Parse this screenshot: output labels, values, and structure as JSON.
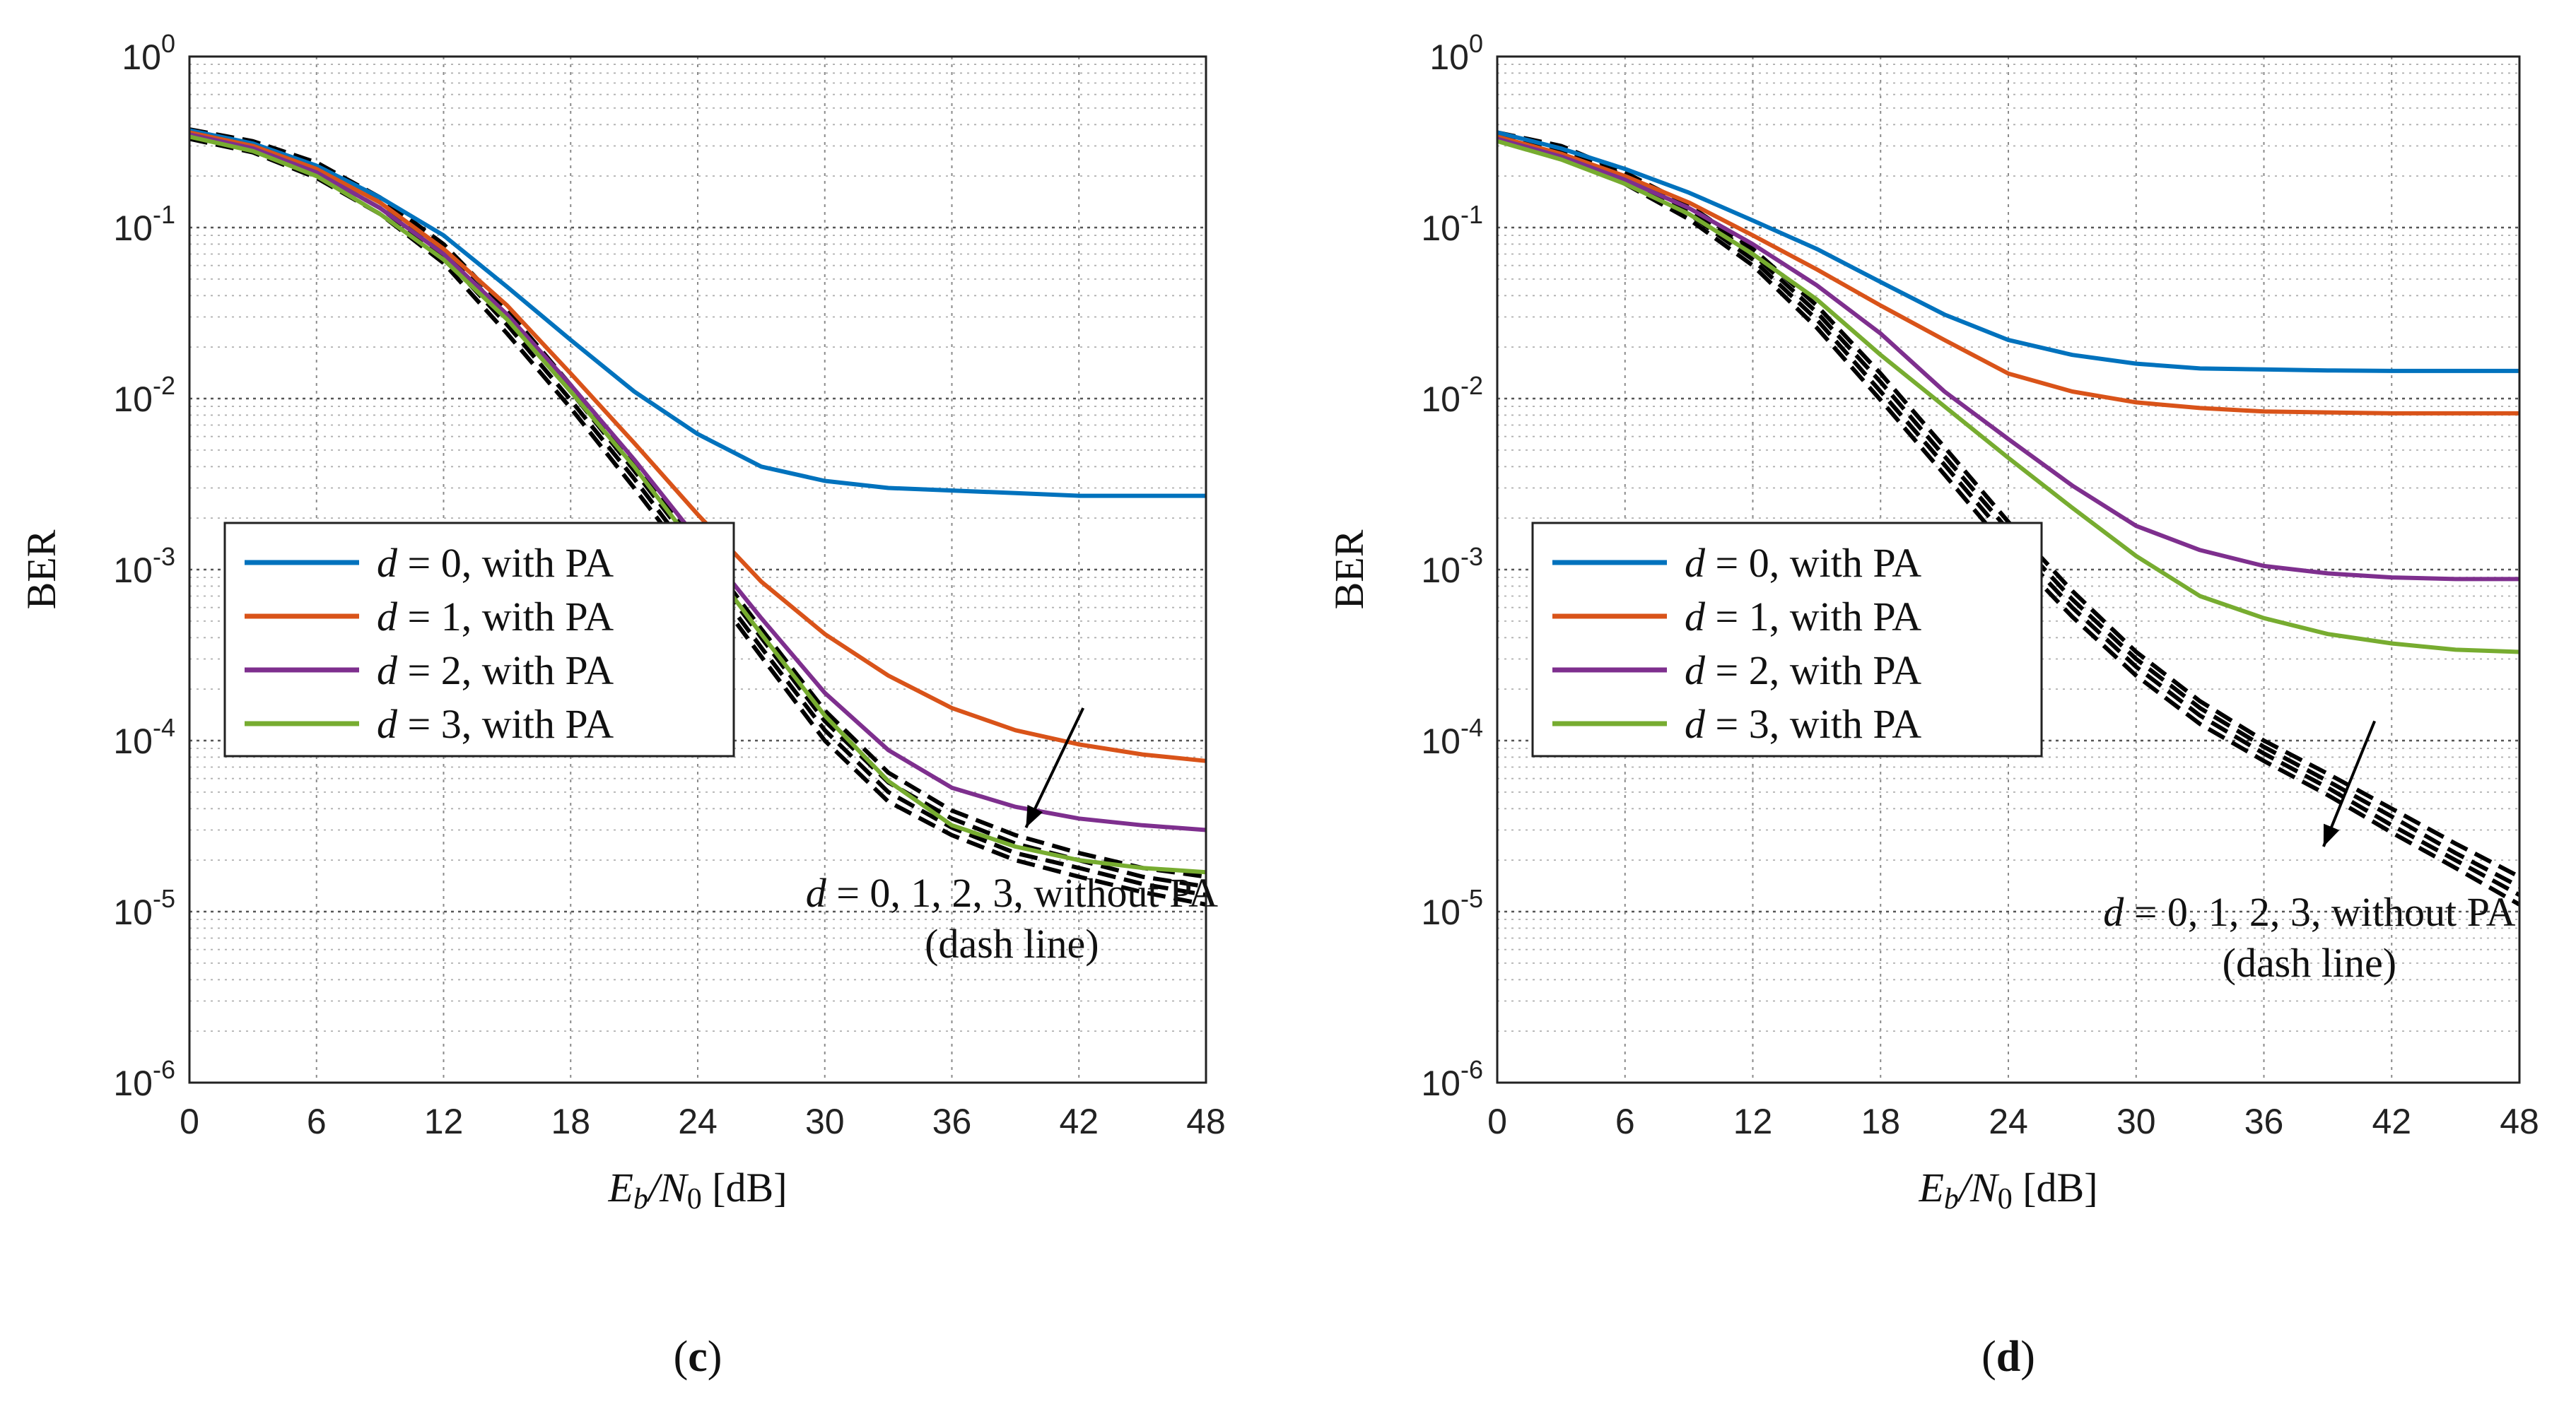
{
  "colors": {
    "d0": "#0072BD",
    "d1": "#D95319",
    "d2": "#7E2F8E",
    "d3": "#77AC30",
    "dash": "#000000",
    "grid": "#8a8a8a"
  },
  "chart_data": [
    {
      "type": "line",
      "panel": "c",
      "caption_open": "(",
      "caption_letter": "c",
      "caption_close": ")",
      "xlabel_main": "E",
      "xlabel_sub1": "b",
      "xlabel_mid": "/N",
      "xlabel_sub2": "0",
      "xlabel_unit": " [dB]",
      "ylabel": "BER",
      "x_scale": "linear",
      "y_scale": "log",
      "xlim": [
        0,
        48
      ],
      "ylim": [
        1e-06,
        1
      ],
      "x_ticks": [
        "0",
        "6",
        "12",
        "18",
        "24",
        "30",
        "36",
        "42",
        "48"
      ],
      "y_ticks_exp": [
        "0",
        "-1",
        "-2",
        "-3",
        "-4",
        "-5",
        "-6"
      ],
      "y_tick_base": "10",
      "grid": true,
      "legend_position": "center-left",
      "x": [
        0,
        3,
        6,
        9,
        12,
        15,
        18,
        21,
        24,
        27,
        30,
        33,
        36,
        39,
        42,
        45,
        48
      ],
      "series": [
        {
          "name": "d=0, with PA",
          "legend_var": "d",
          "legend_eq": " = 0",
          "legend_rest": ", with PA",
          "color_key": "d0",
          "style": "solid",
          "values": [
            0.37,
            0.31,
            0.23,
            0.15,
            0.09,
            0.045,
            0.022,
            0.011,
            0.0062,
            0.004,
            0.0033,
            0.003,
            0.0029,
            0.0028,
            0.0027,
            0.0027,
            0.0027
          ]
        },
        {
          "name": "d=1, with PA",
          "legend_var": "d",
          "legend_eq": " = 1",
          "legend_rest": ", with PA",
          "color_key": "d1",
          "style": "solid",
          "values": [
            0.36,
            0.3,
            0.22,
            0.14,
            0.075,
            0.035,
            0.014,
            0.0055,
            0.0021,
            0.00085,
            0.00042,
            0.00024,
            0.000155,
            0.000115,
            9.5e-05,
            8.3e-05,
            7.6e-05
          ]
        },
        {
          "name": "d=2, with PA",
          "legend_var": "d",
          "legend_eq": " = 2",
          "legend_rest": ", with PA",
          "color_key": "d2",
          "style": "solid",
          "values": [
            0.35,
            0.29,
            0.21,
            0.13,
            0.07,
            0.031,
            0.012,
            0.0044,
            0.0015,
            0.00052,
            0.00019,
            8.8e-05,
            5.3e-05,
            4.1e-05,
            3.5e-05,
            3.2e-05,
            3e-05
          ]
        },
        {
          "name": "d=3, with PA",
          "legend_var": "d",
          "legend_eq": " = 3",
          "legend_rest": ", with PA",
          "color_key": "d3",
          "style": "solid",
          "values": [
            0.34,
            0.28,
            0.2,
            0.12,
            0.065,
            0.029,
            0.011,
            0.004,
            0.0013,
            0.00042,
            0.00014,
            5.8e-05,
            3.2e-05,
            2.4e-05,
            2e-05,
            1.8e-05,
            1.7e-05
          ]
        }
      ],
      "dashed_series": [
        {
          "color_key": "dash",
          "values": [
            0.375,
            0.32,
            0.24,
            0.15,
            0.08,
            0.033,
            0.012,
            0.0042,
            0.0014,
            0.00045,
            0.00015,
            6.5e-05,
            3.9e-05,
            2.8e-05,
            2.2e-05,
            1.8e-05,
            1.6e-05
          ]
        },
        {
          "color_key": "dash",
          "values": [
            0.36,
            0.305,
            0.225,
            0.14,
            0.074,
            0.03,
            0.011,
            0.0038,
            0.00125,
            0.0004,
            0.00013,
            5.7e-05,
            3.5e-05,
            2.5e-05,
            2e-05,
            1.6e-05,
            1.4e-05
          ]
        },
        {
          "color_key": "dash",
          "values": [
            0.345,
            0.29,
            0.21,
            0.13,
            0.068,
            0.027,
            0.0098,
            0.0034,
            0.0011,
            0.00035,
            0.000115,
            5e-05,
            3.1e-05,
            2.2e-05,
            1.8e-05,
            1.45e-05,
            1.25e-05
          ]
        },
        {
          "color_key": "dash",
          "values": [
            0.33,
            0.275,
            0.195,
            0.12,
            0.062,
            0.024,
            0.0088,
            0.003,
            0.00098,
            0.00031,
            0.0001,
            4.4e-05,
            2.8e-05,
            2e-05,
            1.6e-05,
            1.3e-05,
            1.1e-05
          ]
        }
      ],
      "annotation": {
        "var": "d",
        "rest": " = 0, 1, 2, 3, without PA",
        "note": "(dash line)",
        "arrow_from": {
          "x": 42.2,
          "y": 0.000155
        },
        "arrow_to": {
          "x": 39.5,
          "y": 3.1e-05
        }
      }
    },
    {
      "type": "line",
      "panel": "d",
      "caption_open": "(",
      "caption_letter": "d",
      "caption_close": ")",
      "xlabel_main": "E",
      "xlabel_sub1": "b",
      "xlabel_mid": "/N",
      "xlabel_sub2": "0",
      "xlabel_unit": " [dB]",
      "ylabel": "BER",
      "x_scale": "linear",
      "y_scale": "log",
      "xlim": [
        0,
        48
      ],
      "ylim": [
        1e-06,
        1
      ],
      "x_ticks": [
        "0",
        "6",
        "12",
        "18",
        "24",
        "30",
        "36",
        "42",
        "48"
      ],
      "y_ticks_exp": [
        "0",
        "-1",
        "-2",
        "-3",
        "-4",
        "-5",
        "-6"
      ],
      "y_tick_base": "10",
      "grid": true,
      "legend_position": "center-left",
      "x": [
        0,
        3,
        6,
        9,
        12,
        15,
        18,
        21,
        24,
        27,
        30,
        33,
        36,
        39,
        42,
        45,
        48
      ],
      "series": [
        {
          "name": "d=0, with PA",
          "legend_var": "d",
          "legend_eq": " = 0",
          "legend_rest": ", with PA",
          "color_key": "d0",
          "style": "solid",
          "values": [
            0.36,
            0.29,
            0.22,
            0.16,
            0.11,
            0.075,
            0.048,
            0.031,
            0.022,
            0.018,
            0.016,
            0.015,
            0.0148,
            0.0146,
            0.0145,
            0.0145,
            0.0145
          ]
        },
        {
          "name": "d=1, with PA",
          "legend_var": "d",
          "legend_eq": " = 1",
          "legend_rest": ", with PA",
          "color_key": "d1",
          "style": "solid",
          "values": [
            0.34,
            0.27,
            0.2,
            0.14,
            0.09,
            0.057,
            0.035,
            0.022,
            0.014,
            0.011,
            0.0095,
            0.0088,
            0.0084,
            0.0083,
            0.0082,
            0.0082,
            0.0082
          ]
        },
        {
          "name": "d=2, with PA",
          "legend_var": "d",
          "legend_eq": " = 2",
          "legend_rest": ", with PA",
          "color_key": "d2",
          "style": "solid",
          "values": [
            0.33,
            0.26,
            0.19,
            0.13,
            0.08,
            0.046,
            0.024,
            0.011,
            0.0058,
            0.0031,
            0.0018,
            0.0013,
            0.00105,
            0.00095,
            0.0009,
            0.00088,
            0.00088
          ]
        },
        {
          "name": "d=3, with PA",
          "legend_var": "d",
          "legend_eq": " = 3",
          "legend_rest": ", with PA",
          "color_key": "d3",
          "style": "solid",
          "values": [
            0.32,
            0.25,
            0.18,
            0.12,
            0.07,
            0.038,
            0.018,
            0.009,
            0.0045,
            0.0023,
            0.0012,
            0.0007,
            0.00052,
            0.00042,
            0.00037,
            0.00034,
            0.00033
          ]
        }
      ],
      "dashed_series": [
        {
          "color_key": "dash",
          "values": [
            0.36,
            0.3,
            0.21,
            0.135,
            0.075,
            0.035,
            0.014,
            0.0052,
            0.0019,
            0.00075,
            0.00033,
            0.00017,
            0.0001,
            6.4e-05,
            4e-05,
            2.5e-05,
            1.6e-05
          ]
        },
        {
          "color_key": "dash",
          "values": [
            0.35,
            0.29,
            0.2,
            0.128,
            0.07,
            0.032,
            0.0125,
            0.0046,
            0.0017,
            0.00067,
            0.0003,
            0.000155,
            9.2e-05,
            5.8e-05,
            3.6e-05,
            2.2e-05,
            1.4e-05
          ]
        },
        {
          "color_key": "dash",
          "values": [
            0.34,
            0.28,
            0.19,
            0.12,
            0.065,
            0.029,
            0.011,
            0.0041,
            0.0015,
            0.0006,
            0.00027,
            0.00014,
            8.4e-05,
            5.3e-05,
            3.2e-05,
            2e-05,
            1.25e-05
          ]
        },
        {
          "color_key": "dash",
          "values": [
            0.33,
            0.27,
            0.18,
            0.112,
            0.06,
            0.026,
            0.0098,
            0.0036,
            0.0013,
            0.00053,
            0.00024,
            0.000125,
            7.6e-05,
            4.8e-05,
            2.9e-05,
            1.8e-05,
            1.1e-05
          ]
        }
      ],
      "annotation": {
        "var": "d",
        "rest": " = 0, 1, 2, 3, without PA",
        "note": "(dash line)",
        "arrow_from": {
          "x": 41.2,
          "y": 0.00013
        },
        "arrow_to": {
          "x": 38.8,
          "y": 2.4e-05
        }
      }
    }
  ]
}
